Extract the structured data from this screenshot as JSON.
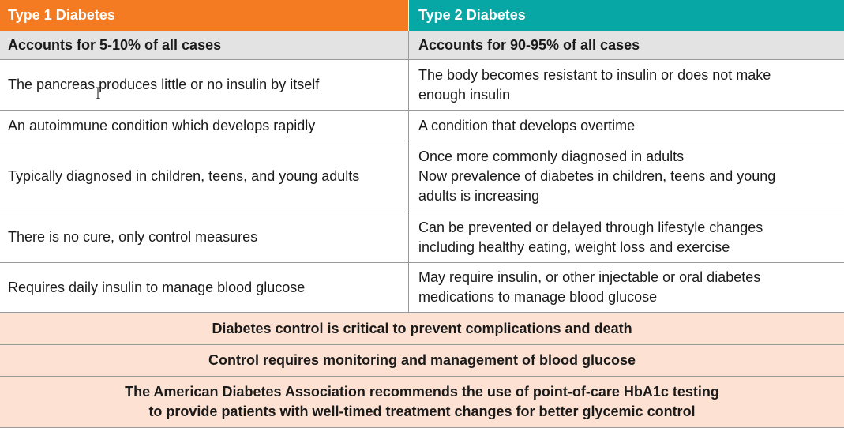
{
  "table": {
    "header": {
      "type1": "Type 1 Diabetes",
      "type2": "Type 2 Diabetes"
    },
    "subheader": {
      "type1": "Accounts for 5-10% of all cases",
      "type2": "Accounts for 90-95% of all cases"
    },
    "rows": [
      {
        "type1": [
          "The pancreas produces little or no insulin by itself"
        ],
        "type2": [
          "The body becomes resistant to insulin or does not make",
          "enough insulin"
        ]
      },
      {
        "type1": [
          "An autoimmune condition which develops rapidly"
        ],
        "type2": [
          "A condition that develops overtime"
        ]
      },
      {
        "type1": [
          "Typically diagnosed in children, teens, and young adults"
        ],
        "type2": [
          "Once more commonly diagnosed in adults",
          "Now prevalence of diabetes in children, teens and young",
          "adults is increasing"
        ]
      },
      {
        "type1": [
          "There is no cure, only control measures"
        ],
        "type2": [
          "Can be prevented or delayed through lifestyle changes",
          "including healthy eating, weight loss and exercise"
        ]
      },
      {
        "type1": [
          "Requires daily insulin to manage blood glucose"
        ],
        "type2": [
          "May require insulin, or other injectable or oral diabetes",
          "medications to manage blood glucose"
        ]
      }
    ],
    "footer": [
      [
        "Diabetes control is critical to prevent complications and death"
      ],
      [
        "Control requires monitoring and management of blood glucose"
      ],
      [
        "The American Diabetes Association recommends the use of point-of-care HbA1c testing",
        "to provide patients with well-timed treatment changes for better glycemic control"
      ]
    ],
    "colors": {
      "type1_header": "#f47b22",
      "type2_header": "#06a7a5",
      "subheader_bg": "#e3e3e3",
      "footer_bg": "#fde1d2"
    }
  },
  "cursor": {
    "icon": "text-cursor-icon"
  }
}
